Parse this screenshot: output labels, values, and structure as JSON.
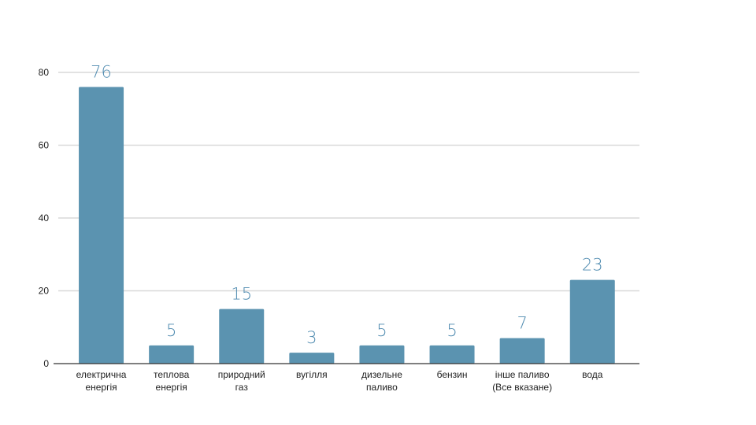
{
  "chart_data": {
    "type": "bar",
    "title": "",
    "xlabel": "",
    "ylabel": "",
    "ylim": [
      0,
      80
    ],
    "yticks": [
      0,
      20,
      40,
      60,
      80
    ],
    "grid": true,
    "legend": "none",
    "bar_color": "#5b93b0",
    "label_color": "#4f8bb0",
    "categories": [
      [
        "електрична",
        "енергія"
      ],
      [
        "теплова",
        "енергія"
      ],
      [
        "природний",
        "газ"
      ],
      [
        "вугілля"
      ],
      [
        "дизельне",
        "паливо"
      ],
      [
        "бензин"
      ],
      [
        "інше паливо",
        "(Все вказане)"
      ],
      [
        "вода"
      ]
    ],
    "values": [
      76,
      5,
      15,
      3,
      5,
      5,
      7,
      23
    ]
  }
}
